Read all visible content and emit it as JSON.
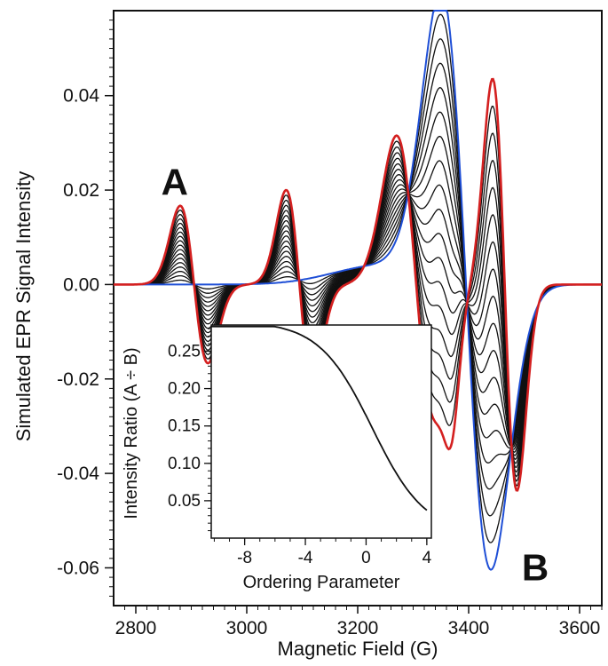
{
  "chart_data": [
    {
      "type": "line",
      "title": "",
      "xlabel": "Magnetic Field (G)",
      "ylabel": "Simulated EPR Signal Intensity",
      "xlim": [
        2760,
        3640
      ],
      "ylim": [
        -0.068,
        0.058
      ],
      "xticks": [
        2800,
        3000,
        3200,
        3400,
        3600
      ],
      "xtick_labels": [
        "2800",
        "3000",
        "3200",
        "3400",
        "3600"
      ],
      "yticks": [
        0.04,
        0.02,
        0.0,
        -0.02,
        -0.04,
        -0.06
      ],
      "ytick_labels": [
        "0.04",
        "0.02",
        "0.00",
        "-0.02",
        "-0.04",
        "-0.06"
      ],
      "grid": false,
      "legend": "none",
      "colors": {
        "red_series": "#d42020",
        "blue_series": "#1f4fd6",
        "intermediate_series": "#111111"
      },
      "annotations": [
        {
          "text": "A",
          "x": 2870,
          "y": 0.019
        },
        {
          "text": "B",
          "x": 3520,
          "y": -0.057
        }
      ],
      "series": [
        {
          "color": "red",
          "x": [
            2760,
            2840,
            2880,
            2920,
            2960,
            3000,
            3030,
            3070,
            3110,
            3150,
            3190,
            3230,
            3265,
            3300,
            3335,
            3375,
            3405,
            3440,
            3470,
            3490,
            3520,
            3560,
            3640
          ],
          "y": [
            0.0,
            0.0,
            0.016,
            -0.005,
            -0.006,
            0.0,
            0.001,
            0.019,
            -0.006,
            -0.004,
            0.003,
            0.012,
            0.033,
            0.016,
            -0.018,
            -0.039,
            0.01,
            0.04,
            -0.025,
            -0.057,
            -0.01,
            0.0,
            0.0
          ]
        },
        {
          "color": "blue",
          "x": [
            2760,
            2840,
            2920,
            3000,
            3100,
            3200,
            3260,
            3300,
            3330,
            3350,
            3370,
            3400,
            3420,
            3440,
            3470,
            3520,
            3560,
            3640
          ],
          "y": [
            0.0,
            0.0,
            -0.001,
            0.0,
            0.003,
            0.01,
            0.02,
            0.035,
            0.052,
            0.058,
            0.05,
            0.0,
            -0.05,
            -0.068,
            -0.04,
            -0.005,
            0.0,
            0.0
          ]
        }
      ]
    },
    {
      "type": "line",
      "title": "",
      "xlabel": "Ordering Parameter",
      "ylabel": "Intensity Ratio (A ÷ B)",
      "xlim": [
        -10.2,
        4.3
      ],
      "ylim": [
        0.0,
        0.285
      ],
      "xticks": [
        -8,
        -4,
        0,
        4
      ],
      "xtick_labels": [
        "-8",
        "-4",
        "0",
        "4"
      ],
      "yticks": [
        0.25,
        0.2,
        0.15,
        0.1,
        0.05
      ],
      "ytick_labels": [
        "0.25",
        "0.20",
        "0.15",
        "0.10",
        "0.05"
      ],
      "series": [
        {
          "x": [
            -10.2,
            -8,
            -6,
            -4,
            -3,
            -2,
            -1,
            0,
            1,
            2,
            3,
            4
          ],
          "y": [
            0.283,
            0.276,
            0.265,
            0.246,
            0.231,
            0.21,
            0.18,
            0.14,
            0.095,
            0.055,
            0.025,
            0.008
          ]
        }
      ]
    }
  ]
}
